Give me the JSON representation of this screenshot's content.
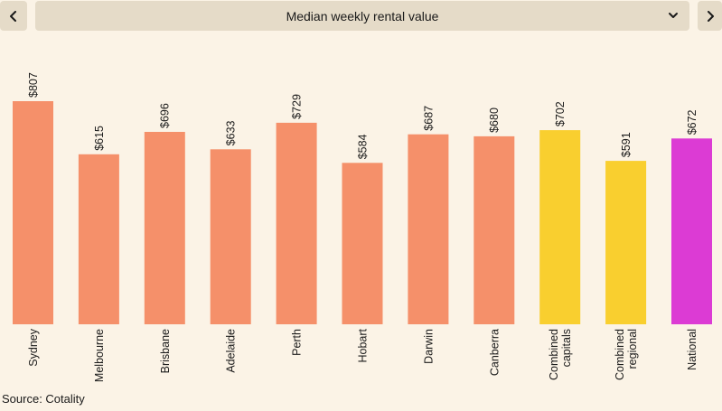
{
  "selector": {
    "label": "Median weekly rental value",
    "prev_icon": "chevron-left-icon",
    "next_icon": "chevron-right-icon",
    "dropdown_icon": "chevron-down-icon"
  },
  "source": "Source: Cotality",
  "colors": {
    "background": "#fbf3e6",
    "capital_city": "#f5906a",
    "combined": "#f9cf2f",
    "national": "#dc3bd4",
    "control": "#e5dbc8"
  },
  "chart_data": {
    "type": "bar",
    "title": "",
    "xlabel": "",
    "ylabel": "",
    "ylim": [
      0,
      807
    ],
    "grid": false,
    "value_prefix": "$",
    "categories": [
      [
        "Sydney"
      ],
      [
        "Melbourne"
      ],
      [
        "Brisbane"
      ],
      [
        "Adelaide"
      ],
      [
        "Perth"
      ],
      [
        "Hobart"
      ],
      [
        "Darwin"
      ],
      [
        "Canberra"
      ],
      [
        "Combined",
        "capitals"
      ],
      [
        "Combined",
        "regional"
      ],
      [
        "National"
      ]
    ],
    "values": [
      807,
      615,
      696,
      633,
      729,
      584,
      687,
      680,
      702,
      591,
      672
    ],
    "value_labels": [
      "$807",
      "$615",
      "$696",
      "$633",
      "$729",
      "$584",
      "$687",
      "$680",
      "$702",
      "$591",
      "$672"
    ],
    "bar_colors": [
      "#f5906a",
      "#f5906a",
      "#f5906a",
      "#f5906a",
      "#f5906a",
      "#f5906a",
      "#f5906a",
      "#f5906a",
      "#f9cf2f",
      "#f9cf2f",
      "#dc3bd4"
    ]
  }
}
